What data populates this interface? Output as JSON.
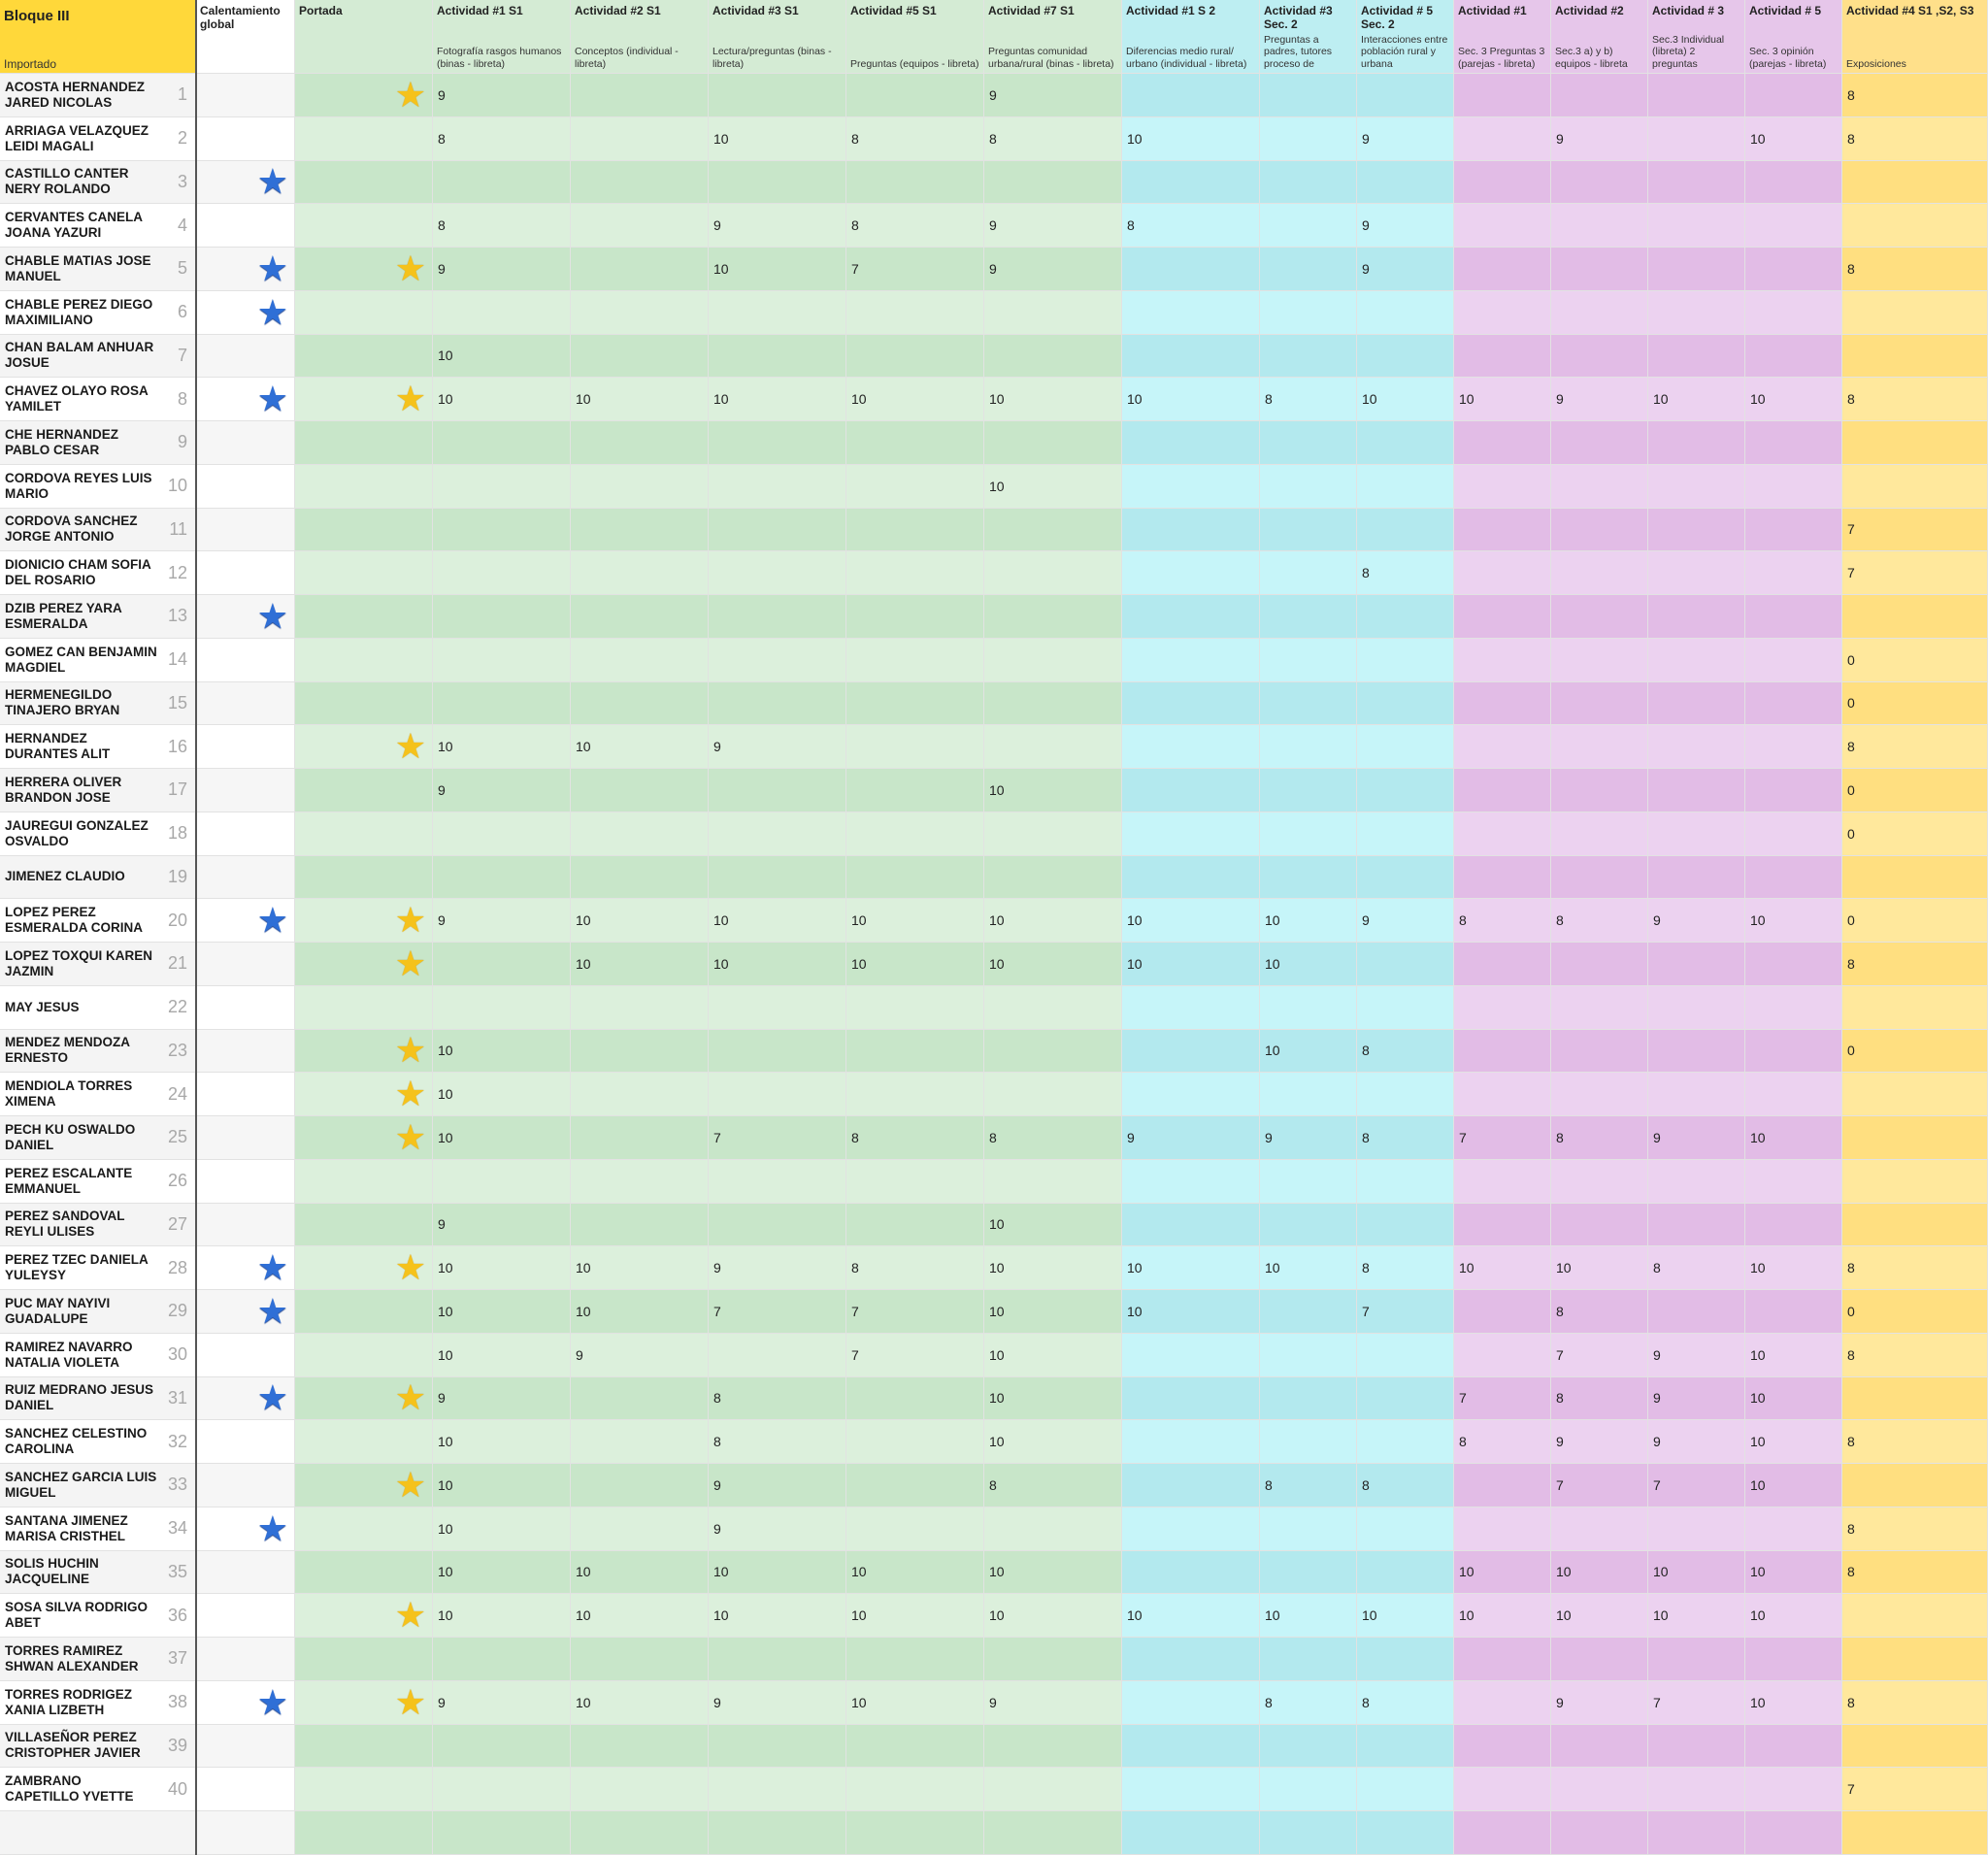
{
  "headers": [
    {
      "title": "Bloque III",
      "subtitle": "Importado"
    },
    {
      "title": "Calentamiento global"
    },
    {
      "title": "Portada"
    },
    {
      "title": "Actividad #1 S1",
      "subtitle": "Fotografía rasgos humanos (binas - libreta)"
    },
    {
      "title": "Actividad #2 S1",
      "subtitle": "Conceptos (individual - libreta)"
    },
    {
      "title": "Actividad #3 S1",
      "subtitle": "Lectura/preguntas (binas - libreta)"
    },
    {
      "title": "Actividad #5 S1",
      "subtitle": "Preguntas (equipos - libreta)"
    },
    {
      "title": "Actividad #7 S1",
      "subtitle": "Preguntas comunidad urbana/rural (binas - libreta)"
    },
    {
      "title": "Actividad #1 S 2",
      "subtitle": "Diferencias medio rural/ urbano (individual - libreta)"
    },
    {
      "title": "Actividad #3 Sec. 2",
      "subtitle": "Preguntas a padres, tutores proceso de"
    },
    {
      "title": "Actividad # 5 Sec. 2",
      "subtitle": "Interacciones entre población rural y urbana"
    },
    {
      "title": "Actividad #1",
      "subtitle": "Sec. 3 Preguntas 3 (parejas - libreta)"
    },
    {
      "title": "Actividad #2",
      "subtitle": "Sec.3 a) y b) equipos - libreta"
    },
    {
      "title": "Actividad # 3",
      "subtitle": "Sec.3 Individual (libreta) 2 preguntas"
    },
    {
      "title": "Actividad # 5",
      "subtitle": "Sec. 3 opinión (parejas - libreta)"
    },
    {
      "title": "Actividad #4 S1 ,S2, S3",
      "subtitle": "Exposiciones"
    }
  ],
  "rows": [
    {
      "name": "ACOSTA HERNANDEZ JARED NICOLAS",
      "number": 1,
      "cells": [
        null,
        "★",
        9,
        null,
        null,
        null,
        9,
        null,
        null,
        null,
        null,
        null,
        null,
        null,
        8
      ]
    },
    {
      "name": "ARRIAGA VELAZQUEZ LEIDI MAGALI",
      "number": 2,
      "cells": [
        null,
        null,
        8,
        null,
        10,
        8,
        8,
        10,
        null,
        9,
        null,
        9,
        null,
        10,
        8
      ]
    },
    {
      "name": "CASTILLO CANTER NERY ROLANDO",
      "number": 3,
      "cells": [
        "★",
        null,
        null,
        null,
        null,
        null,
        null,
        null,
        null,
        null,
        null,
        null,
        null,
        null,
        null
      ]
    },
    {
      "name": "CERVANTES CANELA JOANA YAZURI",
      "number": 4,
      "cells": [
        null,
        null,
        8,
        null,
        9,
        8,
        9,
        8,
        null,
        9,
        null,
        null,
        null,
        null,
        null
      ]
    },
    {
      "name": "CHABLE MATIAS JOSE MANUEL",
      "number": 5,
      "cells": [
        "★",
        "★",
        9,
        null,
        10,
        7,
        9,
        null,
        null,
        9,
        null,
        null,
        null,
        null,
        8
      ]
    },
    {
      "name": "CHABLE PEREZ DIEGO MAXIMILIANO",
      "number": 6,
      "cells": [
        "★",
        null,
        null,
        null,
        null,
        null,
        null,
        null,
        null,
        null,
        null,
        null,
        null,
        null,
        null
      ]
    },
    {
      "name": "CHAN BALAM ANHUAR JOSUE",
      "number": 7,
      "cells": [
        null,
        null,
        10,
        null,
        null,
        null,
        null,
        null,
        null,
        null,
        null,
        null,
        null,
        null,
        null
      ]
    },
    {
      "name": "CHAVEZ OLAYO ROSA YAMILET",
      "number": 8,
      "cells": [
        "★",
        "★",
        10,
        10,
        10,
        10,
        10,
        10,
        8,
        10,
        10,
        9,
        10,
        10,
        8
      ]
    },
    {
      "name": "CHE HERNANDEZ PABLO CESAR",
      "number": 9,
      "cells": [
        null,
        null,
        null,
        null,
        null,
        null,
        null,
        null,
        null,
        null,
        null,
        null,
        null,
        null,
        null
      ]
    },
    {
      "name": "CORDOVA REYES LUIS MARIO",
      "number": 10,
      "cells": [
        null,
        null,
        null,
        null,
        null,
        null,
        10,
        null,
        null,
        null,
        null,
        null,
        null,
        null,
        null
      ]
    },
    {
      "name": "CORDOVA SANCHEZ JORGE ANTONIO",
      "number": 11,
      "cells": [
        null,
        null,
        null,
        null,
        null,
        null,
        null,
        null,
        null,
        null,
        null,
        null,
        null,
        null,
        7
      ]
    },
    {
      "name": "DIONICIO CHAM SOFIA DEL ROSARIO",
      "number": 12,
      "cells": [
        null,
        null,
        null,
        null,
        null,
        null,
        null,
        null,
        null,
        8,
        null,
        null,
        null,
        null,
        7
      ]
    },
    {
      "name": "DZIB PEREZ YARA ESMERALDA",
      "number": 13,
      "cells": [
        "★",
        null,
        null,
        null,
        null,
        null,
        null,
        null,
        null,
        null,
        null,
        null,
        null,
        null,
        null
      ]
    },
    {
      "name": "GOMEZ CAN BENJAMIN MAGDIEL",
      "number": 14,
      "cells": [
        null,
        null,
        null,
        null,
        null,
        null,
        null,
        null,
        null,
        null,
        null,
        null,
        null,
        null,
        0
      ]
    },
    {
      "name": "HERMENEGILDO TINAJERO BRYAN",
      "number": 15,
      "cells": [
        null,
        null,
        null,
        null,
        null,
        null,
        null,
        null,
        null,
        null,
        null,
        null,
        null,
        null,
        0
      ]
    },
    {
      "name": "HERNANDEZ DURANTES ALIT",
      "number": 16,
      "cells": [
        null,
        "★",
        10,
        10,
        9,
        null,
        null,
        null,
        null,
        null,
        null,
        null,
        null,
        null,
        8
      ]
    },
    {
      "name": "HERRERA OLIVER BRANDON JOSE",
      "number": 17,
      "cells": [
        null,
        null,
        9,
        null,
        null,
        null,
        10,
        null,
        null,
        null,
        null,
        null,
        null,
        null,
        0
      ]
    },
    {
      "name": "JAUREGUI GONZALEZ OSVALDO",
      "number": 18,
      "cells": [
        null,
        null,
        null,
        null,
        null,
        null,
        null,
        null,
        null,
        null,
        null,
        null,
        null,
        null,
        0
      ]
    },
    {
      "name": "JIMENEZ CLAUDIO",
      "number": 19,
      "cells": [
        null,
        null,
        null,
        null,
        null,
        null,
        null,
        null,
        null,
        null,
        null,
        null,
        null,
        null,
        null
      ]
    },
    {
      "name": "LOPEZ PEREZ ESMERALDA CORINA",
      "number": 20,
      "cells": [
        "★",
        "★",
        9,
        10,
        10,
        10,
        10,
        10,
        10,
        9,
        8,
        8,
        9,
        10,
        0
      ]
    },
    {
      "name": "LOPEZ TOXQUI KAREN JAZMIN",
      "number": 21,
      "cells": [
        null,
        "★",
        null,
        10,
        10,
        10,
        10,
        10,
        10,
        null,
        null,
        null,
        null,
        null,
        8
      ]
    },
    {
      "name": "MAY JESUS",
      "number": 22,
      "cells": [
        null,
        null,
        null,
        null,
        null,
        null,
        null,
        null,
        null,
        null,
        null,
        null,
        null,
        null,
        null
      ]
    },
    {
      "name": "MENDEZ MENDOZA ERNESTO",
      "number": 23,
      "cells": [
        null,
        "★",
        10,
        null,
        null,
        null,
        null,
        null,
        10,
        8,
        null,
        null,
        null,
        null,
        0
      ]
    },
    {
      "name": "MENDIOLA TORRES XIMENA",
      "number": 24,
      "cells": [
        null,
        "★",
        10,
        null,
        null,
        null,
        null,
        null,
        null,
        null,
        null,
        null,
        null,
        null,
        null
      ]
    },
    {
      "name": "PECH KU OSWALDO DANIEL",
      "number": 25,
      "cells": [
        null,
        "★",
        10,
        null,
        7,
        8,
        8,
        9,
        9,
        8,
        7,
        8,
        9,
        10,
        null
      ]
    },
    {
      "name": "PEREZ ESCALANTE EMMANUEL",
      "number": 26,
      "cells": [
        null,
        null,
        null,
        null,
        null,
        null,
        null,
        null,
        null,
        null,
        null,
        null,
        null,
        null,
        null
      ]
    },
    {
      "name": "PEREZ SANDOVAL REYLI ULISES",
      "number": 27,
      "cells": [
        null,
        null,
        9,
        null,
        null,
        null,
        10,
        null,
        null,
        null,
        null,
        null,
        null,
        null,
        null
      ]
    },
    {
      "name": "PEREZ TZEC DANIELA YULEYSY",
      "number": 28,
      "cells": [
        "★",
        "★",
        10,
        10,
        9,
        8,
        10,
        10,
        10,
        8,
        10,
        10,
        8,
        10,
        8
      ]
    },
    {
      "name": "PUC MAY NAYIVI GUADALUPE",
      "number": 29,
      "cells": [
        "★",
        null,
        10,
        10,
        7,
        7,
        10,
        10,
        null,
        7,
        null,
        8,
        null,
        null,
        0
      ]
    },
    {
      "name": "RAMIREZ NAVARRO NATALIA VIOLETA",
      "number": 30,
      "cells": [
        null,
        null,
        10,
        9,
        null,
        7,
        10,
        null,
        null,
        null,
        null,
        7,
        9,
        10,
        8
      ]
    },
    {
      "name": "RUIZ MEDRANO JESUS DANIEL",
      "number": 31,
      "cells": [
        "★",
        "★",
        9,
        null,
        8,
        null,
        10,
        null,
        null,
        null,
        7,
        8,
        9,
        10,
        null
      ]
    },
    {
      "name": "SANCHEZ CELESTINO CAROLINA",
      "number": 32,
      "cells": [
        null,
        null,
        10,
        null,
        8,
        null,
        10,
        null,
        null,
        null,
        8,
        9,
        9,
        10,
        8
      ]
    },
    {
      "name": "SANCHEZ GARCIA LUIS MIGUEL",
      "number": 33,
      "cells": [
        null,
        "★",
        10,
        null,
        9,
        null,
        8,
        null,
        8,
        8,
        null,
        7,
        7,
        10,
        null
      ]
    },
    {
      "name": "SANTANA JIMENEZ MARISA CRISTHEL",
      "number": 34,
      "cells": [
        "★",
        null,
        10,
        null,
        9,
        null,
        null,
        null,
        null,
        null,
        null,
        null,
        null,
        null,
        8
      ]
    },
    {
      "name": "SOLIS HUCHIN JACQUELINE",
      "number": 35,
      "cells": [
        null,
        null,
        10,
        10,
        10,
        10,
        10,
        null,
        null,
        null,
        10,
        10,
        10,
        10,
        8
      ]
    },
    {
      "name": "SOSA SILVA RODRIGO ABET",
      "number": 36,
      "cells": [
        null,
        "★",
        10,
        10,
        10,
        10,
        10,
        10,
        10,
        10,
        10,
        10,
        10,
        10,
        null
      ]
    },
    {
      "name": "TORRES RAMIREZ SHWAN ALEXANDER",
      "number": 37,
      "cells": [
        null,
        null,
        null,
        null,
        null,
        null,
        null,
        null,
        null,
        null,
        null,
        null,
        null,
        null,
        null
      ]
    },
    {
      "name": "TORRES RODRIGEZ XANIA LIZBETH",
      "number": 38,
      "cells": [
        "★",
        "★",
        9,
        10,
        9,
        10,
        9,
        null,
        8,
        8,
        null,
        9,
        7,
        10,
        8
      ]
    },
    {
      "name": "VILLASEÑOR PEREZ CRISTOPHER JAVIER",
      "number": 39,
      "cells": [
        null,
        null,
        null,
        null,
        null,
        null,
        null,
        null,
        null,
        null,
        null,
        null,
        null,
        null,
        null
      ]
    },
    {
      "name": "ZAMBRANO CAPETILLO YVETTE",
      "number": 40,
      "cells": [
        null,
        null,
        null,
        null,
        null,
        null,
        null,
        null,
        null,
        null,
        null,
        null,
        null,
        null,
        7
      ]
    }
  ]
}
